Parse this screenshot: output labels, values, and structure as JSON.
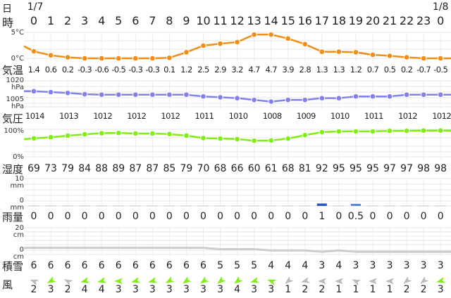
{
  "header": {
    "date_label": "日",
    "hour_label": "時",
    "dates": [
      {
        "col": 0,
        "text": "1/7"
      },
      {
        "col": 24,
        "text": "1/8"
      }
    ],
    "hours": [
      "0",
      "1",
      "2",
      "3",
      "4",
      "5",
      "6",
      "7",
      "8",
      "9",
      "10",
      "11",
      "12",
      "13",
      "14",
      "15",
      "16",
      "17",
      "18",
      "19",
      "20",
      "21",
      "22",
      "23",
      "0"
    ]
  },
  "rows": {
    "temperature": {
      "label": "気温",
      "axis_top": "5°C",
      "axis_bottom": "0°C",
      "color": "#f28c14"
    },
    "pressure": {
      "label": "気圧",
      "axis_top": "1020",
      "axis_top_unit": "hPa",
      "axis_bottom": "1005",
      "axis_bottom_unit": "hPa",
      "color": "#8080f0"
    },
    "humidity": {
      "label": "湿度",
      "axis_top": "100%",
      "axis_bottom": "0%",
      "color": "#80ee10"
    },
    "rain": {
      "label": "雨量",
      "axis_top": "10",
      "axis_top_unit": "mm",
      "axis_bottom": "0",
      "axis_bottom_unit": "mm",
      "color": "#2a56c6"
    },
    "snow": {
      "label": "積雪",
      "axis_top": "20",
      "axis_top_unit": "cm",
      "axis_bottom": "0",
      "axis_bottom_unit": "cm",
      "color": "#cccccc"
    },
    "wind": {
      "label": "風",
      "strong_color": "#80ee10",
      "weak_color": "#bbbbbb"
    }
  },
  "chart_data": [
    {
      "type": "line",
      "title": "気温",
      "ylabel": "°C",
      "ylim": [
        0,
        5
      ],
      "x": [
        "1/7 0",
        "1",
        "2",
        "3",
        "4",
        "5",
        "6",
        "7",
        "8",
        "9",
        "10",
        "11",
        "12",
        "13",
        "14",
        "15",
        "16",
        "17",
        "18",
        "19",
        "20",
        "21",
        "22",
        "23",
        "1/8 0"
      ],
      "values": [
        1.4,
        0.6,
        0.2,
        -0.3,
        -0.6,
        -0.5,
        -0.3,
        -0.3,
        0.1,
        1.2,
        2.5,
        2.9,
        3.2,
        4.7,
        4.7,
        3.9,
        2.8,
        1.3,
        1.3,
        1.2,
        0.7,
        0.5,
        0.2,
        -0.7,
        -0.5
      ],
      "labels": [
        "1.4",
        "0.6",
        "0.2",
        "-0.3",
        "-0.6",
        "-0.5",
        "-0.3",
        "-0.3",
        "0.1",
        "1.2",
        "2.5",
        "2.9",
        "3.2",
        "4.7",
        "4.7",
        "3.9",
        "2.8",
        "1.3",
        "1.3",
        "1.2",
        "0.7",
        "0.5",
        "0.2",
        "-0.7",
        "-0.5"
      ]
    },
    {
      "type": "line",
      "title": "気圧",
      "ylabel": "hPa",
      "ylim": [
        1005,
        1020
      ],
      "values": [
        1014,
        1013.5,
        1013,
        1012.3,
        1012,
        1012,
        1012,
        1012,
        1012,
        1012,
        1011,
        1010.5,
        1010,
        1009,
        1008,
        1009,
        1009,
        1010,
        1010,
        1011,
        1011,
        1011,
        1012,
        1012,
        1012
      ],
      "labels": [
        "1014",
        "",
        "1013",
        "",
        "1012",
        "",
        "1012",
        "",
        "1012",
        "",
        "1011",
        "",
        "1010",
        "",
        "1008",
        "",
        "1009",
        "",
        "1010",
        "",
        "1011",
        "",
        "1012",
        "",
        "1012"
      ]
    },
    {
      "type": "line",
      "title": "湿度",
      "ylabel": "%",
      "ylim": [
        0,
        100
      ],
      "values": [
        69,
        73,
        79,
        84,
        88,
        89,
        87,
        87,
        85,
        79,
        70,
        68,
        66,
        60,
        61,
        68,
        81,
        92,
        95,
        95,
        95,
        97,
        97,
        98,
        98
      ],
      "labels": [
        "69",
        "73",
        "79",
        "84",
        "88",
        "89",
        "87",
        "87",
        "85",
        "79",
        "70",
        "68",
        "66",
        "60",
        "61",
        "68",
        "81",
        "92",
        "95",
        "95",
        "95",
        "97",
        "97",
        "98",
        "98"
      ]
    },
    {
      "type": "bar",
      "title": "雨量",
      "ylabel": "mm",
      "ylim": [
        0,
        10
      ],
      "values": [
        0,
        0,
        0,
        0,
        0,
        0,
        0,
        0,
        0,
        0,
        0,
        0,
        0,
        0,
        0,
        0,
        0,
        1,
        0,
        0.5,
        0,
        0,
        0,
        0,
        0
      ],
      "labels": [
        "0",
        "0",
        "0",
        "0",
        "0",
        "0",
        "0",
        "0",
        "0",
        "0",
        "0",
        "0",
        "0",
        "0",
        "0",
        "0",
        "0",
        "1",
        "0",
        "0.5",
        "0",
        "0",
        "0",
        "0",
        "0"
      ]
    },
    {
      "type": "area",
      "title": "積雪",
      "ylabel": "cm",
      "ylim": [
        0,
        20
      ],
      "values": [
        6,
        6,
        6,
        6,
        6,
        6,
        6,
        6,
        6,
        6,
        6,
        5,
        5,
        5,
        4,
        4,
        4,
        3,
        4,
        3,
        3,
        3,
        3,
        3,
        3
      ],
      "labels": [
        "6",
        "6",
        "6",
        "6",
        "6",
        "6",
        "6",
        "6",
        "6",
        "6",
        "6",
        "5",
        "5",
        "5",
        "4",
        "4",
        "4",
        "3",
        "4",
        "3",
        "3",
        "3",
        "3",
        "3",
        "3"
      ]
    },
    {
      "type": "table",
      "title": "風",
      "speeds": [
        "2",
        "3",
        "2",
        "4",
        "4",
        "3",
        "3",
        "3",
        "3",
        "3",
        "3",
        "3",
        "4",
        "3",
        "3",
        "1",
        "2",
        "2",
        "1",
        "1",
        "1",
        "1",
        "2",
        "2",
        "3"
      ],
      "arrow_angles_deg": [
        200,
        150,
        210,
        165,
        165,
        180,
        165,
        165,
        150,
        145,
        145,
        140,
        140,
        165,
        200,
        140,
        165,
        180,
        180,
        205,
        180,
        180,
        140,
        140,
        165
      ],
      "strong": [
        false,
        true,
        false,
        true,
        true,
        true,
        true,
        true,
        true,
        true,
        true,
        true,
        true,
        true,
        true,
        false,
        false,
        false,
        false,
        false,
        false,
        false,
        false,
        false,
        true
      ]
    }
  ]
}
